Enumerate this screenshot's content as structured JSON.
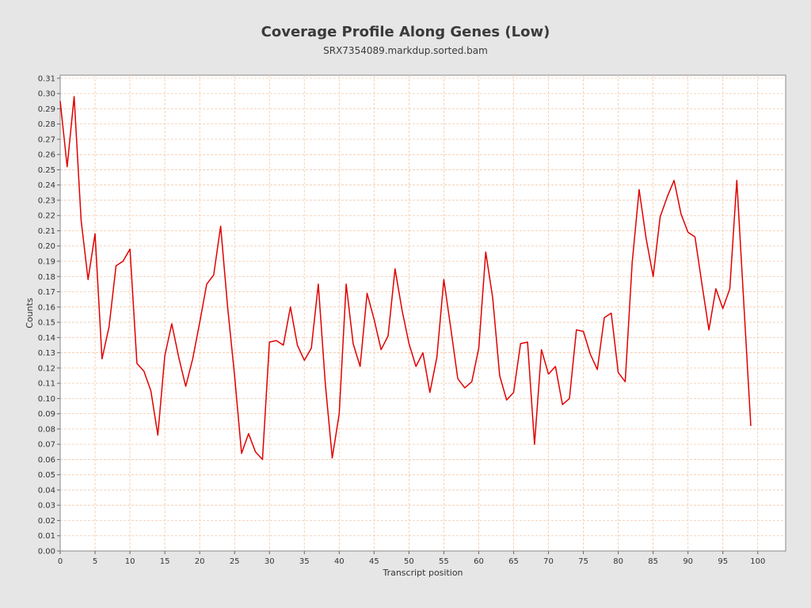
{
  "header": {
    "title": "Coverage Profile Along Genes (Low)",
    "subtitle": "SRX7354089.markdup.sorted.bam"
  },
  "colors": {
    "background": "#e6e6e6",
    "plot_background": "#ffffff",
    "grid": "#f2c8a8",
    "series": "#e00000"
  },
  "chart_data": {
    "type": "line",
    "title": "Coverage Profile Along Genes (Low)",
    "subtitle": "SRX7354089.markdup.sorted.bam",
    "xlabel": "Transcript position",
    "ylabel": "Counts",
    "xlim": [
      0,
      104
    ],
    "ylim": [
      0,
      0.312
    ],
    "x_ticks": [
      0,
      5,
      10,
      15,
      20,
      25,
      30,
      35,
      40,
      45,
      50,
      55,
      60,
      65,
      70,
      75,
      80,
      85,
      90,
      95,
      100
    ],
    "y_ticks": [
      0.0,
      0.01,
      0.02,
      0.03,
      0.04,
      0.05,
      0.06,
      0.07,
      0.08,
      0.09,
      0.1,
      0.11,
      0.12,
      0.13,
      0.14,
      0.15,
      0.16,
      0.17,
      0.18,
      0.19,
      0.2,
      0.21,
      0.22,
      0.23,
      0.24,
      0.25,
      0.26,
      0.27,
      0.28,
      0.29,
      0.3,
      0.31
    ],
    "grid": true,
    "legend": "none",
    "series": [
      {
        "x": [
          0,
          1,
          2,
          3,
          4,
          5,
          6,
          7,
          8,
          9,
          10,
          11,
          12,
          13,
          14,
          15,
          16,
          17,
          18,
          19,
          20,
          21,
          22,
          23,
          24,
          25,
          26,
          27,
          28,
          29,
          30,
          31,
          32,
          33,
          34,
          35,
          36,
          37,
          38,
          39,
          40,
          41,
          42,
          43,
          44,
          45,
          46,
          47,
          48,
          49,
          50,
          51,
          52,
          53,
          54,
          55,
          56,
          57,
          58,
          59,
          60,
          61,
          62,
          63,
          64,
          65,
          66,
          67,
          68,
          69,
          70,
          71,
          72,
          73,
          74,
          75,
          76,
          77,
          78,
          79,
          80,
          81,
          82,
          83,
          84,
          85,
          86,
          87,
          88,
          89,
          90,
          91,
          92,
          93,
          94,
          95,
          96,
          97,
          98,
          99
        ],
        "values": [
          0.295,
          0.252,
          0.298,
          0.217,
          0.178,
          0.208,
          0.126,
          0.147,
          0.187,
          0.19,
          0.198,
          0.123,
          0.118,
          0.105,
          0.076,
          0.128,
          0.149,
          0.127,
          0.108,
          0.126,
          0.15,
          0.175,
          0.181,
          0.213,
          0.16,
          0.115,
          0.064,
          0.077,
          0.065,
          0.06,
          0.137,
          0.138,
          0.135,
          0.16,
          0.135,
          0.125,
          0.133,
          0.175,
          0.11,
          0.061,
          0.09,
          0.175,
          0.136,
          0.121,
          0.169,
          0.152,
          0.132,
          0.141,
          0.185,
          0.158,
          0.136,
          0.121,
          0.13,
          0.104,
          0.127,
          0.178,
          0.146,
          0.113,
          0.107,
          0.111,
          0.133,
          0.196,
          0.166,
          0.115,
          0.099,
          0.104,
          0.136,
          0.137,
          0.07,
          0.132,
          0.116,
          0.121,
          0.096,
          0.1,
          0.145,
          0.144,
          0.129,
          0.119,
          0.153,
          0.156,
          0.117,
          0.111,
          0.189,
          0.237,
          0.205,
          0.18,
          0.219,
          0.232,
          0.243,
          0.221,
          0.209,
          0.206,
          0.175,
          0.145,
          0.172,
          0.159,
          0.172,
          0.243,
          0.162,
          0.082
        ]
      }
    ]
  }
}
